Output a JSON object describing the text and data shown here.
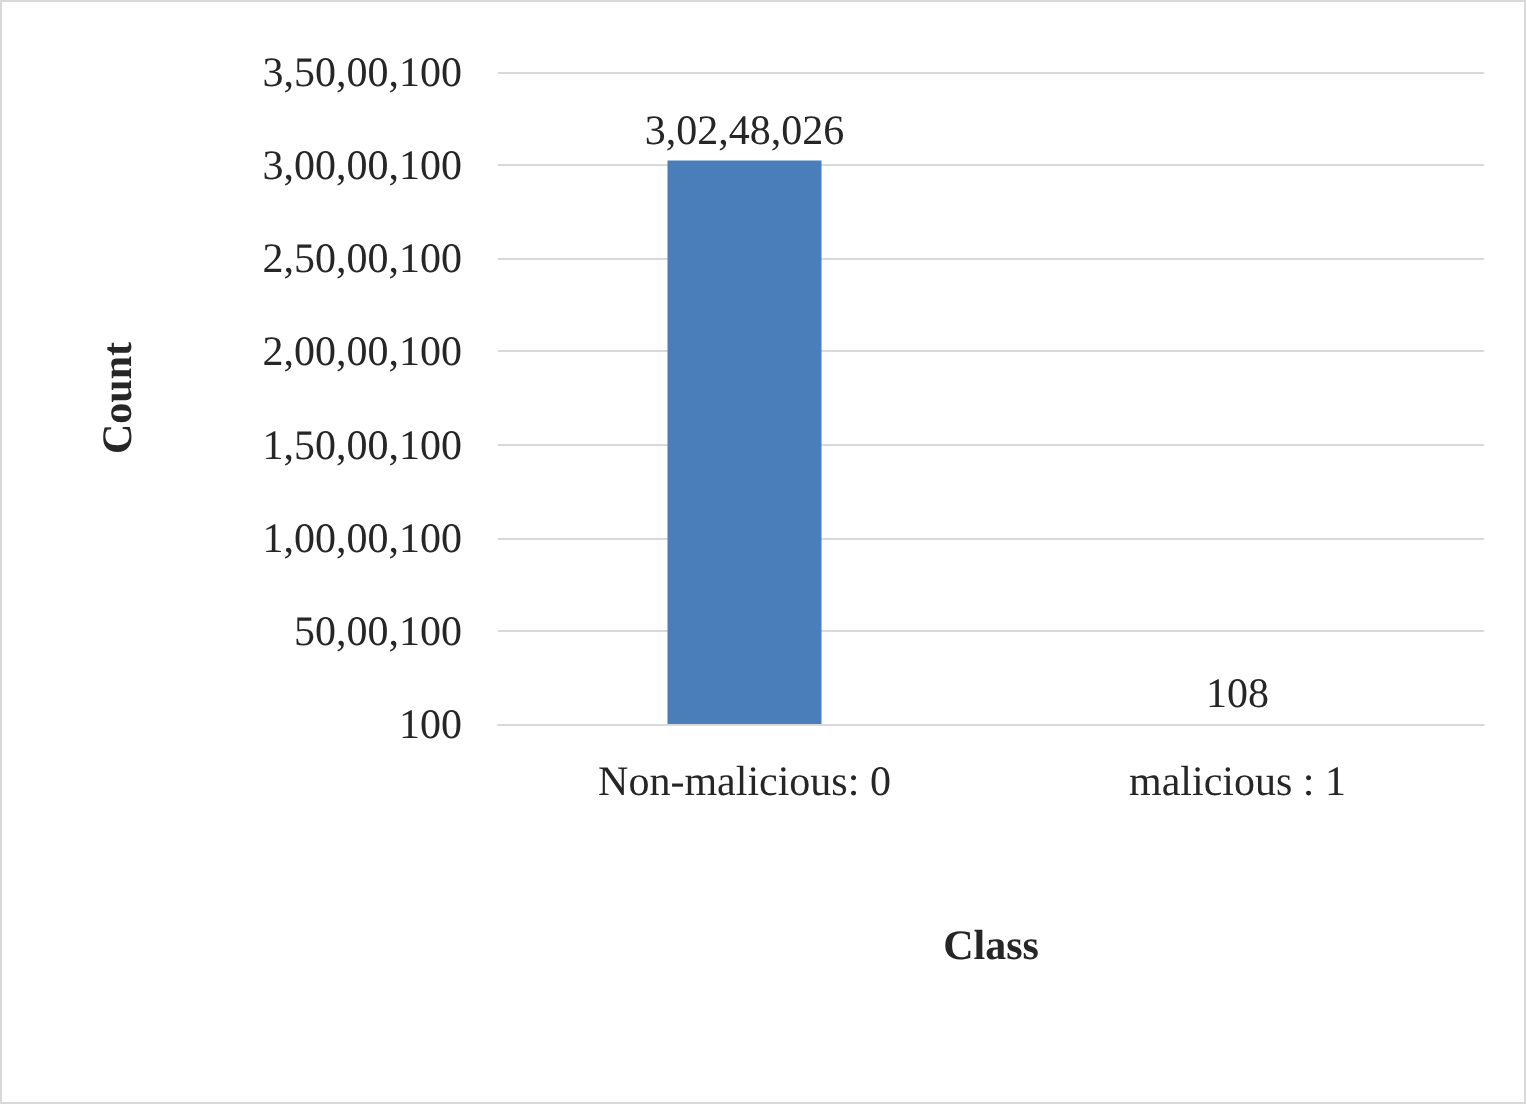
{
  "chart_data": {
    "type": "bar",
    "xlabel": "Class",
    "ylabel": "Count",
    "categories": [
      "Non-malicious: 0",
      "malicious : 1"
    ],
    "values": [
      30248026,
      108
    ],
    "color": "#4a7ebb",
    "value_labels": [
      "3,02,48,026",
      "108"
    ],
    "ylim": [
      100,
      35000100
    ],
    "yticks": [
      {
        "value": 100,
        "label": "100"
      },
      {
        "value": 5000100,
        "label": "50,00,100"
      },
      {
        "value": 10000100,
        "label": "1,00,00,100"
      },
      {
        "value": 15000100,
        "label": "1,50,00,100"
      },
      {
        "value": 20000100,
        "label": "2,00,00,100"
      },
      {
        "value": 25000100,
        "label": "2,50,00,100"
      },
      {
        "value": 30000100,
        "label": "3,00,00,100"
      },
      {
        "value": 35000100,
        "label": "3,50,00,100"
      }
    ],
    "grid": true
  }
}
